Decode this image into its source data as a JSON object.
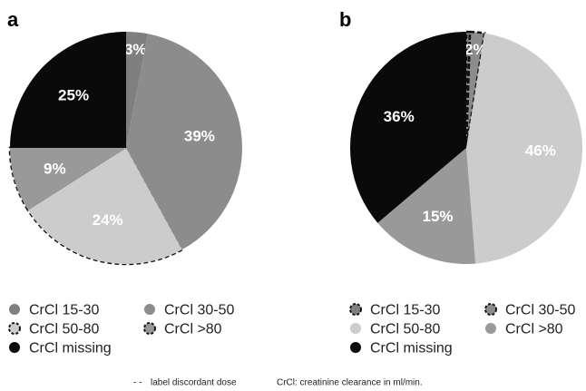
{
  "colors": {
    "crcl_15_30": "#7f7f7f",
    "crcl_30_50": "#8c8c8c",
    "crcl_50_80": "#cccccc",
    "crcl_gt80": "#999999",
    "crcl_missing": "#0a0a0a"
  },
  "chart_data": [
    {
      "type": "pie",
      "panel": "a",
      "slices": [
        {
          "category": "CrCl 15-30",
          "value": 3,
          "label": "3%",
          "dashed": false,
          "colorKey": "crcl_15_30"
        },
        {
          "category": "CrCl 30-50",
          "value": 39,
          "label": "39%",
          "dashed": false,
          "colorKey": "crcl_30_50"
        },
        {
          "category": "CrCl 50-80",
          "value": 24,
          "label": "24%",
          "dashed": true,
          "colorKey": "crcl_50_80"
        },
        {
          "category": "CrCl >80",
          "value": 9,
          "label": "9%",
          "dashed": true,
          "colorKey": "crcl_gt80"
        },
        {
          "category": "CrCl missing",
          "value": 25,
          "label": "25%",
          "dashed": false,
          "colorKey": "crcl_missing"
        }
      ],
      "legend": [
        {
          "label": "CrCl 15-30",
          "colorKey": "crcl_15_30",
          "dashed": false
        },
        {
          "label": "CrCl 30-50",
          "colorKey": "crcl_30_50",
          "dashed": false
        },
        {
          "label": "CrCl 50-80",
          "colorKey": "crcl_50_80",
          "dashed": true
        },
        {
          "label": "CrCl >80",
          "colorKey": "crcl_gt80",
          "dashed": true
        },
        {
          "label": "CrCl missing",
          "colorKey": "crcl_missing",
          "dashed": false
        }
      ]
    },
    {
      "type": "pie",
      "panel": "b",
      "slices": [
        {
          "category": "CrCl 15-30",
          "value": 0.5,
          "label": "",
          "dashed": true,
          "colorKey": "crcl_15_30"
        },
        {
          "category": "CrCl 30-50",
          "value": 2,
          "label": "2%",
          "dashed": true,
          "colorKey": "crcl_30_50"
        },
        {
          "category": "CrCl 50-80",
          "value": 46,
          "label": "46%",
          "dashed": false,
          "colorKey": "crcl_50_80"
        },
        {
          "category": "CrCl >80",
          "value": 15,
          "label": "15%",
          "dashed": false,
          "colorKey": "crcl_gt80"
        },
        {
          "category": "CrCl missing",
          "value": 36,
          "label": "36%",
          "dashed": false,
          "colorKey": "crcl_missing"
        }
      ],
      "legend": [
        {
          "label": "CrCl 15-30",
          "colorKey": "crcl_15_30",
          "dashed": true
        },
        {
          "label": "CrCl 30-50",
          "colorKey": "crcl_30_50",
          "dashed": true
        },
        {
          "label": "CrCl 50-80",
          "colorKey": "crcl_50_80",
          "dashed": false
        },
        {
          "label": "CrCl >80",
          "colorKey": "crcl_gt80",
          "dashed": false
        },
        {
          "label": "CrCl missing",
          "colorKey": "crcl_missing",
          "dashed": false
        }
      ]
    }
  ],
  "footnote": {
    "dash_symbol": "- -",
    "dash_text": "label discordant dose",
    "abbreviation": "CrCl: creatinine clearance in ml/min."
  }
}
